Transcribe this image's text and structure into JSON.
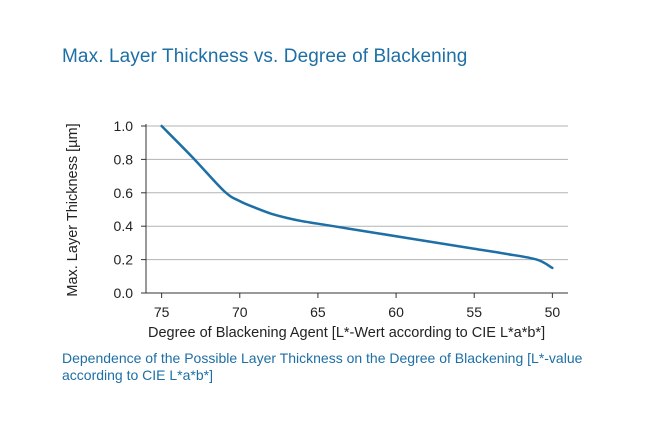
{
  "chart_data": {
    "type": "line",
    "title": "Max. Layer Thickness vs. Degree of Blackening",
    "xlabel": "Degree of Blackening Agent [L*-Wert according to CIE L*a*b*]",
    "ylabel": "Max. Layer Thickness [µm]",
    "caption": "Dependence of the Possible Layer Thickness on the Degree of Blackening [L*-value according to CIE L*a*b*]",
    "xlim": [
      76,
      49
    ],
    "ylim": [
      0,
      1.0
    ],
    "x_reversed": true,
    "xticks": [
      75,
      70,
      65,
      60,
      55,
      50
    ],
    "yticks": [
      0.0,
      0.2,
      0.4,
      0.6,
      0.8,
      1.0
    ],
    "ytick_labels": [
      "0.0",
      "0.2",
      "0.4",
      "0.6",
      "0.8",
      "1.0"
    ],
    "grid": "horizontal",
    "line_color": "#1d6fa5",
    "series": [
      {
        "x": [
          75,
          73,
          71,
          70,
          69,
          68,
          67,
          66,
          65,
          63,
          61,
          59,
          57,
          55,
          53,
          51,
          50
        ],
        "y": [
          1.0,
          0.81,
          0.61,
          0.55,
          0.51,
          0.475,
          0.45,
          0.43,
          0.415,
          0.385,
          0.355,
          0.325,
          0.295,
          0.265,
          0.235,
          0.2,
          0.15
        ]
      }
    ]
  }
}
